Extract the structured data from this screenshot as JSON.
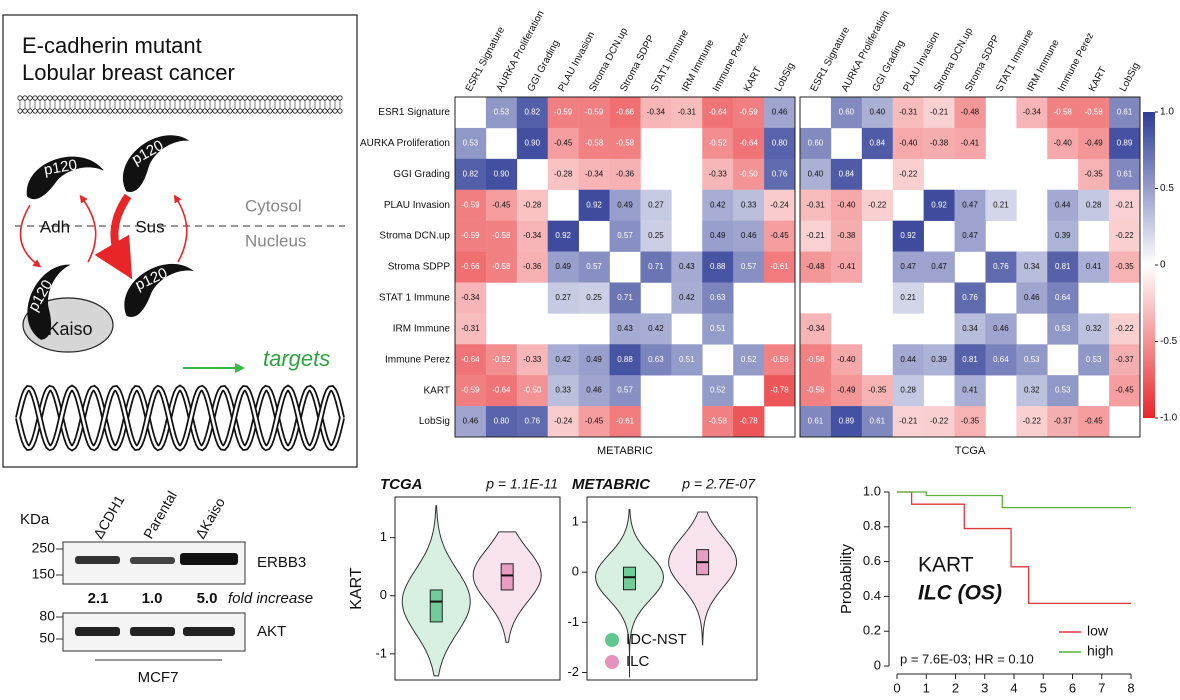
{
  "diagram": {
    "title": "E-cadherin mutant",
    "subtitle": "Lobular breast cancer",
    "protein": "p120",
    "states": [
      "Adh",
      "Sus"
    ],
    "compartments": [
      "Cytosol",
      "Nucleus"
    ],
    "partner": "Kaiso",
    "output": "targets"
  },
  "blot": {
    "unit": "KDa",
    "markers": [
      "250",
      "150",
      "80",
      "50"
    ],
    "lanes": [
      "ΔCDH1",
      "Parental",
      "ΔKaiso"
    ],
    "proteins": [
      "ERBB3",
      "AKT"
    ],
    "fold": [
      "2.1",
      "1.0",
      "5.0"
    ],
    "fold_label": "fold increase",
    "cell_line": "MCF7"
  },
  "chart_data": [
    {
      "type": "heatmap",
      "title": "METABRIC",
      "colorscale": [
        "#e8262a",
        "#ffffff",
        "#2e3c96"
      ],
      "zlim": [
        -1,
        1
      ],
      "rows": [
        "ESR1 Signature",
        "AURKA Proliferation",
        "GGI Grading",
        "PLAU Invasion",
        "Stroma DCN.up",
        "Stroma SDPP",
        "STAT 1 Immune",
        "IRM Immune",
        "Immune Perez",
        "KART",
        "LobSig"
      ],
      "columns": [
        "ESR1 Signature",
        "AURKA Proliferation",
        "GGI Grading",
        "PLAU Invasion",
        "Stroma DCN.up",
        "Stroma SDPP",
        "STAT1 Immune",
        "IRM Immune",
        "Immune Perez",
        "KART",
        "LobSig"
      ],
      "values": [
        [
          null,
          0.53,
          0.82,
          -0.59,
          -0.59,
          -0.66,
          -0.34,
          -0.31,
          -0.64,
          -0.59,
          0.46
        ],
        [
          0.53,
          null,
          0.9,
          -0.45,
          -0.58,
          -0.58,
          null,
          null,
          -0.52,
          -0.64,
          0.8
        ],
        [
          0.82,
          0.9,
          null,
          -0.28,
          -0.34,
          -0.36,
          null,
          null,
          -0.33,
          -0.5,
          0.76
        ],
        [
          -0.59,
          -0.45,
          -0.28,
          null,
          0.92,
          0.49,
          0.27,
          null,
          0.42,
          0.33,
          -0.24
        ],
        [
          -0.59,
          -0.58,
          -0.34,
          0.92,
          null,
          0.57,
          0.25,
          null,
          0.49,
          0.46,
          -0.45
        ],
        [
          -0.66,
          -0.58,
          -0.36,
          0.49,
          0.57,
          null,
          0.71,
          0.43,
          0.88,
          0.57,
          -0.61
        ],
        [
          -0.34,
          null,
          null,
          0.27,
          0.25,
          0.71,
          null,
          0.42,
          0.63,
          null,
          null
        ],
        [
          -0.31,
          null,
          null,
          null,
          null,
          0.43,
          0.42,
          null,
          0.51,
          null,
          null
        ],
        [
          -0.64,
          -0.52,
          -0.33,
          0.42,
          0.49,
          0.88,
          0.63,
          0.51,
          null,
          0.52,
          -0.58
        ],
        [
          -0.59,
          -0.64,
          -0.5,
          0.33,
          0.46,
          0.57,
          null,
          null,
          0.52,
          null,
          -0.78
        ],
        [
          0.46,
          0.8,
          0.76,
          -0.24,
          -0.45,
          -0.61,
          null,
          null,
          -0.58,
          -0.78,
          null
        ]
      ],
      "value_labels": [
        [
          null,
          "0.53",
          "0.82",
          "-0.59",
          "-0.59",
          "-0.66",
          "-0.34",
          "-0.31",
          "-0.64",
          "-0.59",
          "0.46"
        ],
        [
          "0.53",
          null,
          "0.90",
          "-0.45",
          "-0.58",
          "-0.58",
          null,
          null,
          "-0.52",
          "-0.64",
          "0.80"
        ],
        [
          "0.82",
          "0.90",
          null,
          "-0.28",
          "-0.34",
          "-0.36",
          null,
          null,
          "-0.33",
          "-0.50",
          "0.76"
        ],
        [
          "-0.59",
          "-0.45",
          "-0.28",
          null,
          "0.92",
          "0.49",
          "0.27",
          null,
          "0.42",
          "0.33",
          "-0.24"
        ],
        [
          "-0.59",
          "-0.58",
          "-0.34",
          "0.92",
          null,
          "0.57",
          "0.25",
          null,
          "0.49",
          "0.46",
          "-0.45"
        ],
        [
          "-0.66",
          "-0.58",
          "-0.36",
          "0.49",
          "0.57",
          null,
          "0.71",
          "0.43",
          "0.88",
          "0.57",
          "-0.61"
        ],
        [
          "-0.34",
          null,
          null,
          "0.27",
          "0.25",
          "0.71",
          null,
          "0.42",
          "0.63",
          null,
          null
        ],
        [
          "-0.31",
          null,
          null,
          null,
          null,
          "0.43",
          "0.42",
          null,
          "0.51",
          null,
          null
        ],
        [
          "-0.64",
          "-0.52",
          "-0.33",
          "0.42",
          "0.49",
          "0.88",
          "0.63",
          "0.51",
          null,
          "0.52",
          "-0.58"
        ],
        [
          "-0.59",
          "-0.64",
          "-0.50",
          "0.33",
          "0.46",
          "0.57",
          null,
          null,
          "0.52",
          null,
          "-0.78"
        ],
        [
          "0.46",
          "0.80",
          "0.76",
          "-0.24",
          "-0.45",
          "-0.61",
          null,
          null,
          "-0.58",
          "-0.78",
          null
        ]
      ]
    },
    {
      "type": "heatmap",
      "title": "TCGA",
      "colorscale": [
        "#e8262a",
        "#ffffff",
        "#2e3c96"
      ],
      "zlim": [
        -1,
        1
      ],
      "colorbar_ticks": [
        {
          "value": 1,
          "label": "1.0"
        },
        0.5,
        0,
        -0.5,
        {
          "value": -1,
          "label": "-1.0"
        }
      ],
      "columns": [
        "ESR1 Signature",
        "AURKA Proliferation",
        "GGI Grading",
        "PLAU Invasion",
        "Stroma DCN.up",
        "Stroma SDPP",
        "STAT1 Immune",
        "IRM Immune",
        "Immune Perez",
        "KART",
        "LobSig"
      ],
      "values": [
        [
          null,
          0.6,
          0.4,
          -0.31,
          -0.21,
          -0.48,
          null,
          -0.34,
          -0.58,
          -0.58,
          0.61
        ],
        [
          0.6,
          null,
          0.84,
          -0.4,
          -0.38,
          -0.41,
          null,
          null,
          -0.4,
          -0.49,
          0.89
        ],
        [
          0.4,
          0.84,
          null,
          -0.22,
          null,
          null,
          null,
          null,
          null,
          -0.35,
          0.61
        ],
        [
          -0.31,
          -0.4,
          -0.22,
          null,
          0.92,
          0.47,
          0.21,
          null,
          0.44,
          0.28,
          -0.21
        ],
        [
          -0.21,
          -0.38,
          null,
          0.92,
          null,
          0.47,
          null,
          null,
          0.39,
          null,
          -0.22
        ],
        [
          -0.48,
          -0.41,
          null,
          0.47,
          0.47,
          null,
          0.76,
          0.34,
          0.81,
          0.41,
          -0.35
        ],
        [
          null,
          null,
          null,
          0.21,
          null,
          0.76,
          null,
          0.46,
          0.64,
          null,
          null
        ],
        [
          -0.34,
          null,
          null,
          null,
          null,
          0.34,
          0.46,
          null,
          0.53,
          0.32,
          -0.22
        ],
        [
          -0.58,
          -0.4,
          null,
          0.44,
          0.39,
          0.81,
          0.64,
          0.53,
          null,
          0.53,
          -0.37
        ],
        [
          -0.58,
          -0.49,
          -0.35,
          0.28,
          null,
          0.41,
          null,
          0.32,
          0.53,
          null,
          -0.45
        ],
        [
          0.61,
          0.89,
          0.61,
          -0.21,
          -0.22,
          -0.35,
          null,
          -0.22,
          -0.37,
          -0.45,
          null
        ]
      ],
      "value_labels": [
        [
          null,
          "0.60",
          "0.40",
          "-0.31",
          "-0.21",
          "-0.48",
          null,
          "-0.34",
          "-0.58",
          "-0.58",
          "0.61"
        ],
        [
          "0.60",
          null,
          "0.84",
          "-0.40",
          "-0.38",
          "-0.41",
          null,
          null,
          "-0.40",
          "-0.49",
          "0.89"
        ],
        [
          "0.40",
          "0.84",
          null,
          "-0.22",
          null,
          null,
          null,
          null,
          null,
          "-0.35",
          "0.61"
        ],
        [
          "-0.31",
          "-0.40",
          "-0.22",
          null,
          "0.92",
          "0.47",
          "0.21",
          null,
          "0.44",
          "0.28",
          "-0.21"
        ],
        [
          "-0.21",
          "-0.38",
          null,
          "0.92",
          null,
          "0.47",
          null,
          null,
          "0.39",
          null,
          "-0.22"
        ],
        [
          "-0.48",
          "-0.41",
          null,
          "0.47",
          "0.47",
          null,
          "0.76",
          "0.34",
          "0.81",
          "0.41",
          "-0.35"
        ],
        [
          null,
          null,
          null,
          "0.21",
          null,
          "0.76",
          null,
          "0.46",
          "0.64",
          null,
          null
        ],
        [
          "-0.34",
          null,
          null,
          null,
          null,
          "0.34",
          "0.46",
          null,
          "0.53",
          "0.32",
          "-0.22"
        ],
        [
          "-0.58",
          "-0.40",
          null,
          "0.44",
          "0.39",
          "0.81",
          "0.64",
          "0.53",
          null,
          "0.53",
          "-0.37"
        ],
        [
          "-0.58",
          "-0.49",
          "-0.35",
          "0.28",
          null,
          "0.41",
          null,
          "0.32",
          "0.53",
          null,
          "-0.45"
        ],
        [
          "0.61",
          "0.89",
          "0.61",
          "-0.21",
          "-0.22",
          "-0.35",
          null,
          "-0.22",
          "-0.37",
          "-0.45",
          null
        ]
      ]
    },
    {
      "type": "violin",
      "title": "TCGA",
      "annotation": "p = 1.1E-11",
      "ylabel": "KART",
      "ylim": [
        -1.45,
        1.7
      ],
      "yticks": [
        1,
        0,
        -1
      ],
      "series": [
        {
          "color": "#1fae5e",
          "median": -0.1,
          "q1": -0.45,
          "q3": 0.1,
          "min": -1.38,
          "max": 1.55
        },
        {
          "color": "#d9669f",
          "median": 0.35,
          "q1": 0.1,
          "q3": 0.55,
          "min": -0.8,
          "max": 1.1
        }
      ]
    },
    {
      "type": "violin",
      "title": "METABRIC",
      "annotation": "p = 2.7E-07",
      "ylim": [
        -2.15,
        1.5
      ],
      "yticks": [
        1,
        0,
        -1,
        -2
      ],
      "series": [
        {
          "name": "IDC-NST",
          "color": "#1fae5e",
          "median": -0.1,
          "q1": -0.35,
          "q3": 0.1,
          "min": -2.1,
          "max": 1.25
        },
        {
          "name": "ILC",
          "color": "#d9669f",
          "median": 0.2,
          "q1": -0.05,
          "q3": 0.45,
          "min": -1.45,
          "max": 1.2
        }
      ]
    },
    {
      "type": "line",
      "ylabel": "Probability",
      "annotations": [
        "KART",
        "ILC (OS)",
        "p = 7.6E-03; HR = 0.10"
      ],
      "legend": "lower right",
      "xlim": [
        0,
        8
      ],
      "xticks": [
        0,
        1,
        2,
        3,
        4,
        5,
        6,
        7,
        8
      ],
      "ylim": [
        0,
        1
      ],
      "yticks": [
        0,
        0.2,
        0.4,
        0.6,
        0.8,
        {
          "value": 1,
          "label": "1.0"
        }
      ],
      "series": [
        {
          "name": "low",
          "color": "#e0393d",
          "x": [
            0,
            0.5,
            2.3,
            3.9,
            4.5,
            8
          ],
          "values": [
            1,
            0.93,
            0.79,
            0.57,
            0.36,
            0.36
          ]
        },
        {
          "name": "high",
          "color": "#5fae3c",
          "x": [
            0,
            1,
            3.6,
            8
          ],
          "values": [
            1,
            0.98,
            0.91,
            0.91
          ]
        }
      ]
    }
  ]
}
